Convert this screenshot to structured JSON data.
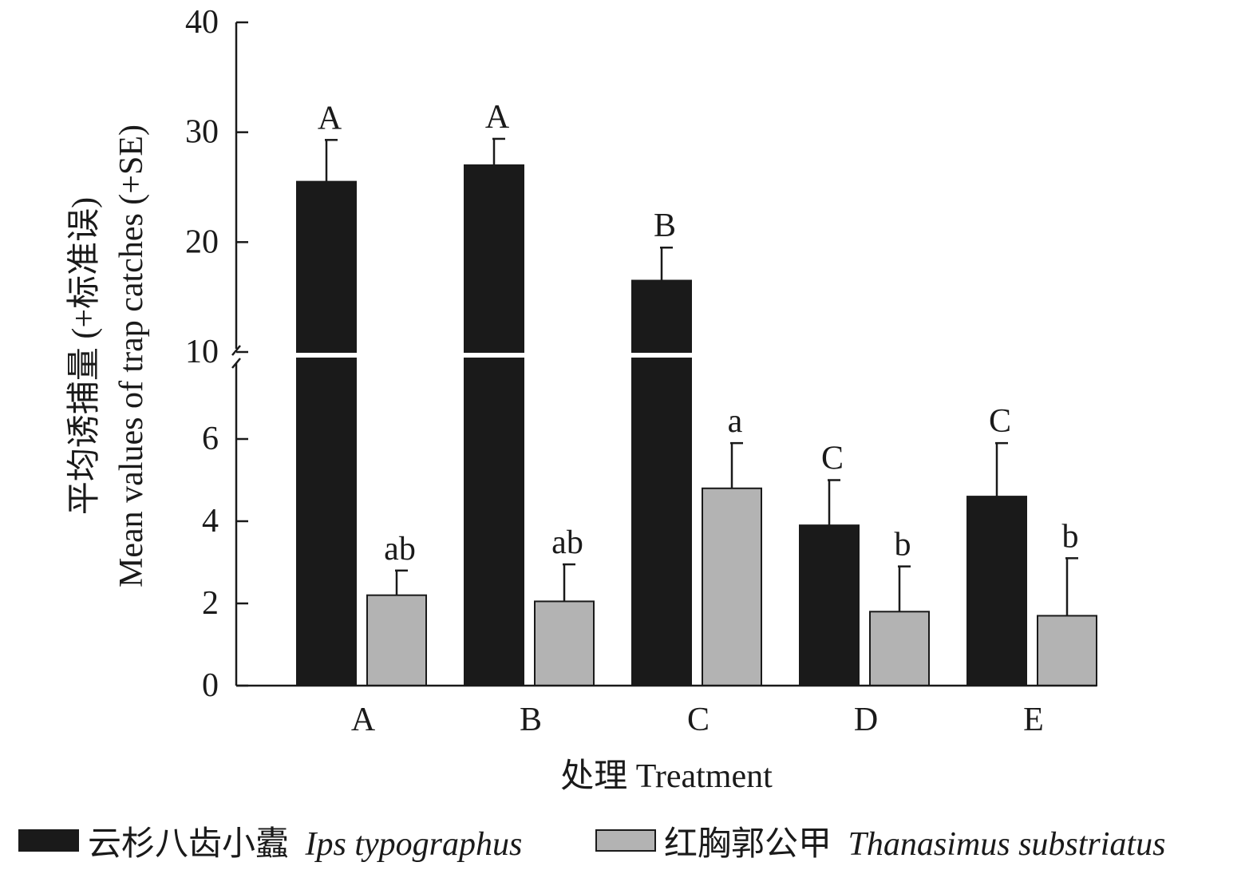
{
  "chart_data": {
    "type": "bar",
    "ylabel_cn": "平均诱捕量 (+标准误)",
    "ylabel_en": "Mean values of trap catches (+SE)",
    "xlabel": "处理 Treatment",
    "categories": [
      "A",
      "B",
      "C",
      "D",
      "E"
    ],
    "y_axis": {
      "broken": true,
      "lower_segment": [
        0,
        8
      ],
      "upper_segment": [
        10,
        40
      ],
      "ticks": [
        "0",
        "2",
        "4",
        "6",
        "10",
        "20",
        "30",
        "40"
      ]
    },
    "series": [
      {
        "name_cn": "云杉八齿小蠹",
        "name_latin": "Ips typographus",
        "color": "#1a1a1a",
        "values": [
          25.5,
          27.0,
          16.5,
          3.9,
          4.6
        ],
        "se": [
          3.8,
          2.4,
          3.0,
          1.1,
          1.3
        ],
        "letters": [
          "A",
          "A",
          "B",
          "C",
          "C"
        ]
      },
      {
        "name_cn": "红胸郭公甲",
        "name_latin": "Thanasimus substriatus",
        "color": "#b3b3b3",
        "values": [
          2.2,
          2.05,
          4.8,
          1.8,
          1.7
        ],
        "se": [
          0.6,
          0.9,
          1.1,
          1.1,
          1.4
        ],
        "letters": [
          "ab",
          "ab",
          "a",
          "b",
          "b"
        ]
      }
    ]
  }
}
